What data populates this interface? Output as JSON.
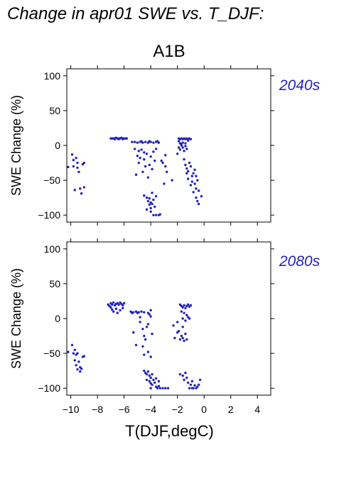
{
  "title": "Change in apr01 SWE vs. T_DJF:",
  "scenario": "A1B",
  "chart_data": [
    {
      "type": "scatter",
      "panel_label": "2040s",
      "ylabel": "SWE Change (%)",
      "xlabel": "T(DJF,degC)",
      "xlim": [
        -10.3,
        5.0
      ],
      "ylim": [
        -110,
        110
      ],
      "xticks": [
        -10,
        -8,
        -6,
        -4,
        -2,
        0,
        2,
        4
      ],
      "yticks": [
        -100,
        -50,
        0,
        50,
        100
      ],
      "x_tick_labels_shown": false,
      "color": "#2222bb",
      "points": [
        [
          -10.2,
          -31
        ],
        [
          -9.9,
          -13
        ],
        [
          -9.8,
          -21
        ],
        [
          -9.8,
          -30
        ],
        [
          -9.7,
          -64
        ],
        [
          -9.6,
          -18
        ],
        [
          -9.5,
          -25
        ],
        [
          -9.5,
          -32
        ],
        [
          -9.4,
          -38
        ],
        [
          -9.3,
          -62
        ],
        [
          -9.2,
          -69
        ],
        [
          -9.0,
          -60
        ],
        [
          -9.1,
          -27
        ],
        [
          -9.0,
          -25
        ],
        [
          -7.0,
          10
        ],
        [
          -6.9,
          10
        ],
        [
          -6.8,
          10
        ],
        [
          -6.7,
          10
        ],
        [
          -6.6,
          11
        ],
        [
          -6.5,
          10
        ],
        [
          -6.4,
          10
        ],
        [
          -6.3,
          10
        ],
        [
          -6.2,
          11
        ],
        [
          -6.1,
          10
        ],
        [
          -6.0,
          10
        ],
        [
          -5.9,
          10
        ],
        [
          -5.8,
          10
        ],
        [
          -6.7,
          9
        ],
        [
          -6.4,
          9
        ],
        [
          -6.1,
          9
        ],
        [
          -5.4,
          5
        ],
        [
          -5.2,
          5
        ],
        [
          -5.0,
          4
        ],
        [
          -4.8,
          5
        ],
        [
          -4.6,
          4
        ],
        [
          -4.4,
          5
        ],
        [
          -4.2,
          4
        ],
        [
          -4.0,
          5
        ],
        [
          -3.8,
          4
        ],
        [
          -3.6,
          5
        ],
        [
          -3.4,
          4
        ],
        [
          -4.7,
          6
        ],
        [
          -4.1,
          6
        ],
        [
          -3.5,
          6
        ],
        [
          -5.2,
          -5
        ],
        [
          -5.0,
          -15
        ],
        [
          -4.9,
          -25
        ],
        [
          -4.8,
          -18
        ],
        [
          -4.7,
          -6
        ],
        [
          -4.5,
          -20
        ],
        [
          -4.4,
          -30
        ],
        [
          -4.3,
          -12
        ],
        [
          -4.1,
          -28
        ],
        [
          -4.0,
          -16
        ],
        [
          -3.8,
          -9
        ],
        [
          -3.7,
          -22
        ],
        [
          -3.6,
          -5
        ],
        [
          -5.1,
          -42
        ],
        [
          -4.6,
          -38
        ],
        [
          -4.2,
          -46
        ],
        [
          -3.9,
          -34
        ],
        [
          -4.5,
          -10
        ],
        [
          -4.9,
          -8
        ],
        [
          -4.5,
          -72
        ],
        [
          -4.3,
          -75
        ],
        [
          -4.2,
          -80
        ],
        [
          -4.1,
          -85
        ],
        [
          -4.0,
          -90
        ],
        [
          -3.9,
          -84
        ],
        [
          -3.8,
          -78
        ],
        [
          -4.0,
          -95
        ],
        [
          -3.8,
          -100
        ],
        [
          -3.6,
          -100
        ],
        [
          -3.4,
          -100
        ],
        [
          -3.9,
          -68
        ],
        [
          -4.3,
          -92
        ],
        [
          -4.1,
          -76
        ],
        [
          -3.7,
          -88
        ],
        [
          -4.0,
          -82
        ],
        [
          -3.6,
          -73
        ],
        [
          -3.3,
          -99
        ],
        [
          -3.2,
          -22
        ],
        [
          -3.1,
          -25
        ],
        [
          -2.9,
          -30
        ],
        [
          -2.8,
          -38
        ],
        [
          -3.0,
          -55
        ],
        [
          -2.4,
          -50
        ],
        [
          -2.9,
          -14
        ],
        [
          -1.9,
          10
        ],
        [
          -1.8,
          9
        ],
        [
          -1.7,
          10
        ],
        [
          -1.6,
          9
        ],
        [
          -1.5,
          10
        ],
        [
          -1.4,
          9
        ],
        [
          -1.3,
          10
        ],
        [
          -1.2,
          9
        ],
        [
          -1.1,
          10
        ],
        [
          -1.0,
          9
        ],
        [
          -1.9,
          6
        ],
        [
          -1.2,
          7
        ],
        [
          -1.9,
          -3
        ],
        [
          -1.8,
          -6
        ],
        [
          -1.7,
          0
        ],
        [
          -1.6,
          -3
        ],
        [
          -1.5,
          -8
        ],
        [
          -1.4,
          -1
        ],
        [
          -1.3,
          -5
        ],
        [
          -1.7,
          2
        ],
        [
          -1.6,
          4
        ],
        [
          -1.4,
          3
        ],
        [
          -1.8,
          3
        ],
        [
          -1.5,
          -20
        ],
        [
          -1.4,
          -28
        ],
        [
          -1.3,
          -33
        ],
        [
          -1.2,
          -37
        ],
        [
          -1.1,
          -25
        ],
        [
          -1.0,
          -30
        ],
        [
          -0.9,
          -44
        ],
        [
          -0.8,
          -40
        ],
        [
          -0.7,
          -55
        ],
        [
          -0.6,
          -62
        ],
        [
          -0.5,
          -50
        ],
        [
          -0.7,
          -35
        ],
        [
          -0.6,
          -44
        ],
        [
          -1.2,
          -48
        ],
        [
          -1.0,
          -57
        ],
        [
          -0.8,
          -67
        ],
        [
          -0.6,
          -75
        ],
        [
          -0.5,
          -80
        ],
        [
          -0.4,
          -84
        ],
        [
          -0.2,
          -73
        ],
        [
          -0.4,
          -65
        ],
        [
          -1.3,
          -40
        ],
        [
          -0.9,
          -52
        ],
        [
          -2.0,
          -12
        ]
      ]
    },
    {
      "type": "scatter",
      "panel_label": "2080s",
      "ylabel": "SWE Change (%)",
      "xlabel": "T(DJF,degC)",
      "xlim": [
        -10.3,
        5.0
      ],
      "ylim": [
        -110,
        110
      ],
      "xticks": [
        -10,
        -8,
        -6,
        -4,
        -2,
        0,
        2,
        4
      ],
      "yticks": [
        -100,
        -50,
        0,
        50,
        100
      ],
      "x_tick_labels_shown": true,
      "color": "#2222bb",
      "points": [
        [
          -10.2,
          -48
        ],
        [
          -9.9,
          -38
        ],
        [
          -9.8,
          -50
        ],
        [
          -9.7,
          -45
        ],
        [
          -9.6,
          -52
        ],
        [
          -9.5,
          -50
        ],
        [
          -9.7,
          -60
        ],
        [
          -9.6,
          -67
        ],
        [
          -9.4,
          -62
        ],
        [
          -9.3,
          -70
        ],
        [
          -9.2,
          -72
        ],
        [
          -9.1,
          -55
        ],
        [
          -9.0,
          -54
        ],
        [
          -9.5,
          -73
        ],
        [
          -9.3,
          -76
        ],
        [
          -7.2,
          20
        ],
        [
          -7.1,
          18
        ],
        [
          -7.0,
          22
        ],
        [
          -6.9,
          20
        ],
        [
          -6.8,
          23
        ],
        [
          -6.7,
          19
        ],
        [
          -6.6,
          21
        ],
        [
          -6.5,
          22
        ],
        [
          -6.4,
          20
        ],
        [
          -6.3,
          23
        ],
        [
          -6.2,
          21
        ],
        [
          -6.1,
          19
        ],
        [
          -6.0,
          22
        ],
        [
          -7.0,
          16
        ],
        [
          -6.8,
          10
        ],
        [
          -6.6,
          14
        ],
        [
          -6.5,
          8
        ],
        [
          -6.3,
          12
        ],
        [
          -6.1,
          15
        ],
        [
          -6.9,
          13
        ],
        [
          -5.5,
          10
        ],
        [
          -5.3,
          9
        ],
        [
          -5.1,
          10
        ],
        [
          -4.9,
          9
        ],
        [
          -4.7,
          10
        ],
        [
          -4.5,
          9
        ],
        [
          -5.4,
          8
        ],
        [
          -5.0,
          8
        ],
        [
          -4.2,
          8
        ],
        [
          -4.0,
          12
        ],
        [
          -4.1,
          6
        ],
        [
          -4.0,
          3
        ],
        [
          -4.8,
          2
        ],
        [
          -5.3,
          -20
        ],
        [
          -4.8,
          -5
        ],
        [
          -4.6,
          -15
        ],
        [
          -4.5,
          -25
        ],
        [
          -4.4,
          -30
        ],
        [
          -4.2,
          -8
        ],
        [
          -3.9,
          -22
        ],
        [
          -4.6,
          -40
        ],
        [
          -4.2,
          -48
        ],
        [
          -4.5,
          -52
        ],
        [
          -4.0,
          -55
        ],
        [
          -5.1,
          -38
        ],
        [
          -4.3,
          -12
        ],
        [
          -4.5,
          -75
        ],
        [
          -4.4,
          -78
        ],
        [
          -4.3,
          -80
        ],
        [
          -4.2,
          -76
        ],
        [
          -4.1,
          -82
        ],
        [
          -4.0,
          -85
        ],
        [
          -3.9,
          -80
        ],
        [
          -4.1,
          -90
        ],
        [
          -3.9,
          -95
        ],
        [
          -3.7,
          -92
        ],
        [
          -3.6,
          -98
        ],
        [
          -3.5,
          -100
        ],
        [
          -3.4,
          -97
        ],
        [
          -3.3,
          -100
        ],
        [
          -3.1,
          -100
        ],
        [
          -2.9,
          -100
        ],
        [
          -2.7,
          -100
        ],
        [
          -4.0,
          -100
        ],
        [
          -3.8,
          -88
        ],
        [
          -3.6,
          -86
        ],
        [
          -3.4,
          -90
        ],
        [
          -4.3,
          -88
        ],
        [
          -4.0,
          -93
        ],
        [
          -2.3,
          -10
        ],
        [
          -2.2,
          -28
        ],
        [
          -2.0,
          -5
        ],
        [
          -1.9,
          -18
        ],
        [
          -1.8,
          -30
        ],
        [
          -1.7,
          -25
        ],
        [
          -1.6,
          -12
        ],
        [
          -1.5,
          -32
        ],
        [
          -1.4,
          -22
        ],
        [
          -1.3,
          -30
        ],
        [
          -2.0,
          -20
        ],
        [
          -1.6,
          -28
        ],
        [
          -1.8,
          20
        ],
        [
          -1.7,
          18
        ],
        [
          -1.6,
          16
        ],
        [
          -1.5,
          19
        ],
        [
          -1.4,
          15
        ],
        [
          -1.3,
          18
        ],
        [
          -1.2,
          20
        ],
        [
          -1.1,
          17
        ],
        [
          -1.0,
          19
        ],
        [
          -1.7,
          10
        ],
        [
          -1.5,
          8
        ],
        [
          -1.3,
          5
        ],
        [
          -1.2,
          2
        ],
        [
          -1.1,
          0
        ],
        [
          -1.4,
          -3
        ],
        [
          -1.6,
          0
        ],
        [
          -1.8,
          -80
        ],
        [
          -1.6,
          -82
        ],
        [
          -1.5,
          -88
        ],
        [
          -1.3,
          -85
        ],
        [
          -1.2,
          -92
        ],
        [
          -1.0,
          -95
        ],
        [
          -0.9,
          -90
        ],
        [
          -0.8,
          -100
        ],
        [
          -0.6,
          -100
        ],
        [
          -0.5,
          -98
        ],
        [
          -0.4,
          -95
        ],
        [
          -1.1,
          -100
        ],
        [
          -0.7,
          -96
        ],
        [
          -0.3,
          -88
        ],
        [
          -1.4,
          -78
        ],
        [
          -0.9,
          -100
        ]
      ]
    }
  ]
}
